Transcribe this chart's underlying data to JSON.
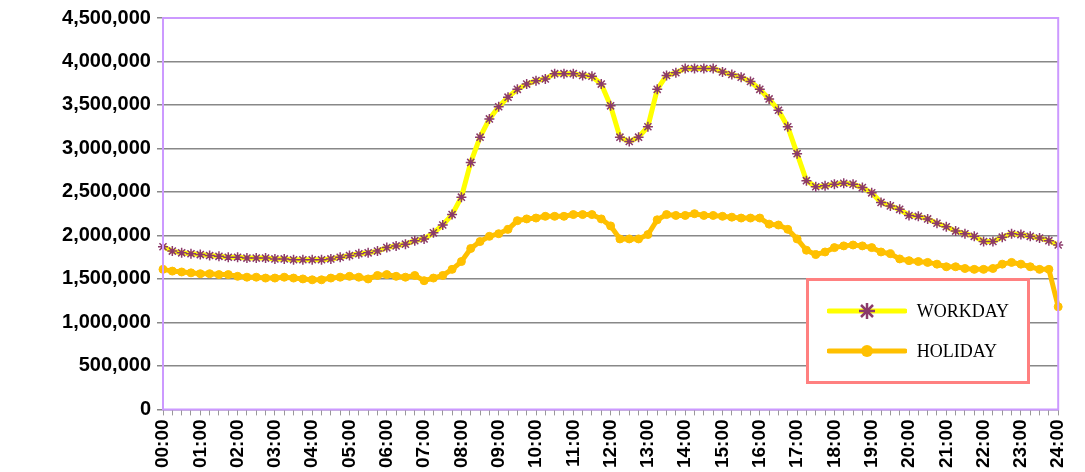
{
  "chart_data": {
    "type": "line",
    "categories": [
      "00:00",
      null,
      null,
      null,
      "01:00",
      null,
      null,
      null,
      "02:00",
      null,
      null,
      null,
      "03:00",
      null,
      null,
      null,
      "04:00",
      null,
      null,
      null,
      "05:00",
      null,
      null,
      null,
      "06:00",
      null,
      null,
      null,
      "07:00",
      null,
      null,
      null,
      "08:00",
      null,
      null,
      null,
      "09:00",
      null,
      null,
      null,
      "10:00",
      null,
      null,
      null,
      "11:00",
      null,
      null,
      null,
      "12:00",
      null,
      null,
      null,
      "13:00",
      null,
      null,
      null,
      "14:00",
      null,
      null,
      null,
      "15:00",
      null,
      null,
      null,
      "16:00",
      null,
      null,
      null,
      "17:00",
      null,
      null,
      null,
      "18:00",
      null,
      null,
      null,
      "19:00",
      null,
      null,
      null,
      "20:00",
      null,
      null,
      null,
      "21:00",
      null,
      null,
      null,
      "22:00",
      null,
      null,
      null,
      "23:00",
      null,
      null,
      null,
      "24:00"
    ],
    "series": [
      {
        "name": "WORKDAY",
        "color": "#ffff00",
        "marker": "cross",
        "values": [
          1870000,
          1820000,
          1800000,
          1790000,
          1780000,
          1770000,
          1760000,
          1750000,
          1750000,
          1740000,
          1740000,
          1740000,
          1730000,
          1730000,
          1720000,
          1720000,
          1720000,
          1720000,
          1730000,
          1750000,
          1770000,
          1790000,
          1800000,
          1820000,
          1860000,
          1880000,
          1900000,
          1940000,
          1960000,
          2030000,
          2120000,
          2240000,
          2440000,
          2840000,
          3130000,
          3340000,
          3480000,
          3590000,
          3680000,
          3740000,
          3780000,
          3800000,
          3860000,
          3860000,
          3860000,
          3840000,
          3830000,
          3740000,
          3490000,
          3130000,
          3080000,
          3130000,
          3250000,
          3680000,
          3840000,
          3870000,
          3920000,
          3920000,
          3920000,
          3920000,
          3880000,
          3850000,
          3820000,
          3770000,
          3680000,
          3570000,
          3440000,
          3250000,
          2940000,
          2630000,
          2560000,
          2570000,
          2590000,
          2600000,
          2590000,
          2550000,
          2490000,
          2380000,
          2340000,
          2300000,
          2230000,
          2220000,
          2190000,
          2140000,
          2100000,
          2050000,
          2020000,
          1990000,
          1930000,
          1930000,
          1980000,
          2020000,
          2010000,
          1990000,
          1970000,
          1940000,
          1890000
        ]
      },
      {
        "name": "HOLIDAY",
        "color": "#ffc000",
        "marker": "circle",
        "values": [
          1610000,
          1590000,
          1580000,
          1570000,
          1560000,
          1560000,
          1550000,
          1550000,
          1530000,
          1520000,
          1520000,
          1510000,
          1510000,
          1520000,
          1510000,
          1500000,
          1490000,
          1490000,
          1510000,
          1520000,
          1530000,
          1520000,
          1500000,
          1540000,
          1550000,
          1530000,
          1520000,
          1540000,
          1480000,
          1510000,
          1540000,
          1610000,
          1700000,
          1850000,
          1930000,
          1990000,
          2020000,
          2070000,
          2170000,
          2190000,
          2200000,
          2220000,
          2220000,
          2220000,
          2240000,
          2240000,
          2240000,
          2190000,
          2110000,
          1960000,
          1960000,
          1960000,
          2010000,
          2180000,
          2240000,
          2230000,
          2230000,
          2250000,
          2230000,
          2230000,
          2220000,
          2210000,
          2200000,
          2200000,
          2200000,
          2130000,
          2120000,
          2070000,
          1960000,
          1830000,
          1780000,
          1810000,
          1860000,
          1880000,
          1890000,
          1880000,
          1860000,
          1810000,
          1790000,
          1730000,
          1710000,
          1700000,
          1690000,
          1670000,
          1640000,
          1640000,
          1620000,
          1610000,
          1610000,
          1620000,
          1670000,
          1690000,
          1670000,
          1640000,
          1610000,
          1610000,
          1180000
        ]
      }
    ],
    "ylim": [
      0,
      4500000
    ],
    "yticks": [
      {
        "value": 0,
        "label": "0"
      },
      {
        "value": 500000,
        "label": "500,000"
      },
      {
        "value": 1000000,
        "label": "1,000,000"
      },
      {
        "value": 1500000,
        "label": "1,500,000"
      },
      {
        "value": 2000000,
        "label": "2,000,000"
      },
      {
        "value": 2500000,
        "label": "2,500,000"
      },
      {
        "value": 3000000,
        "label": "3,000,000"
      },
      {
        "value": 3500000,
        "label": "3,500,000"
      },
      {
        "value": 4000000,
        "label": "4,000,000"
      },
      {
        "value": 4500000,
        "label": "4,500,000"
      }
    ],
    "grid": "y",
    "legend": "bottom right"
  }
}
